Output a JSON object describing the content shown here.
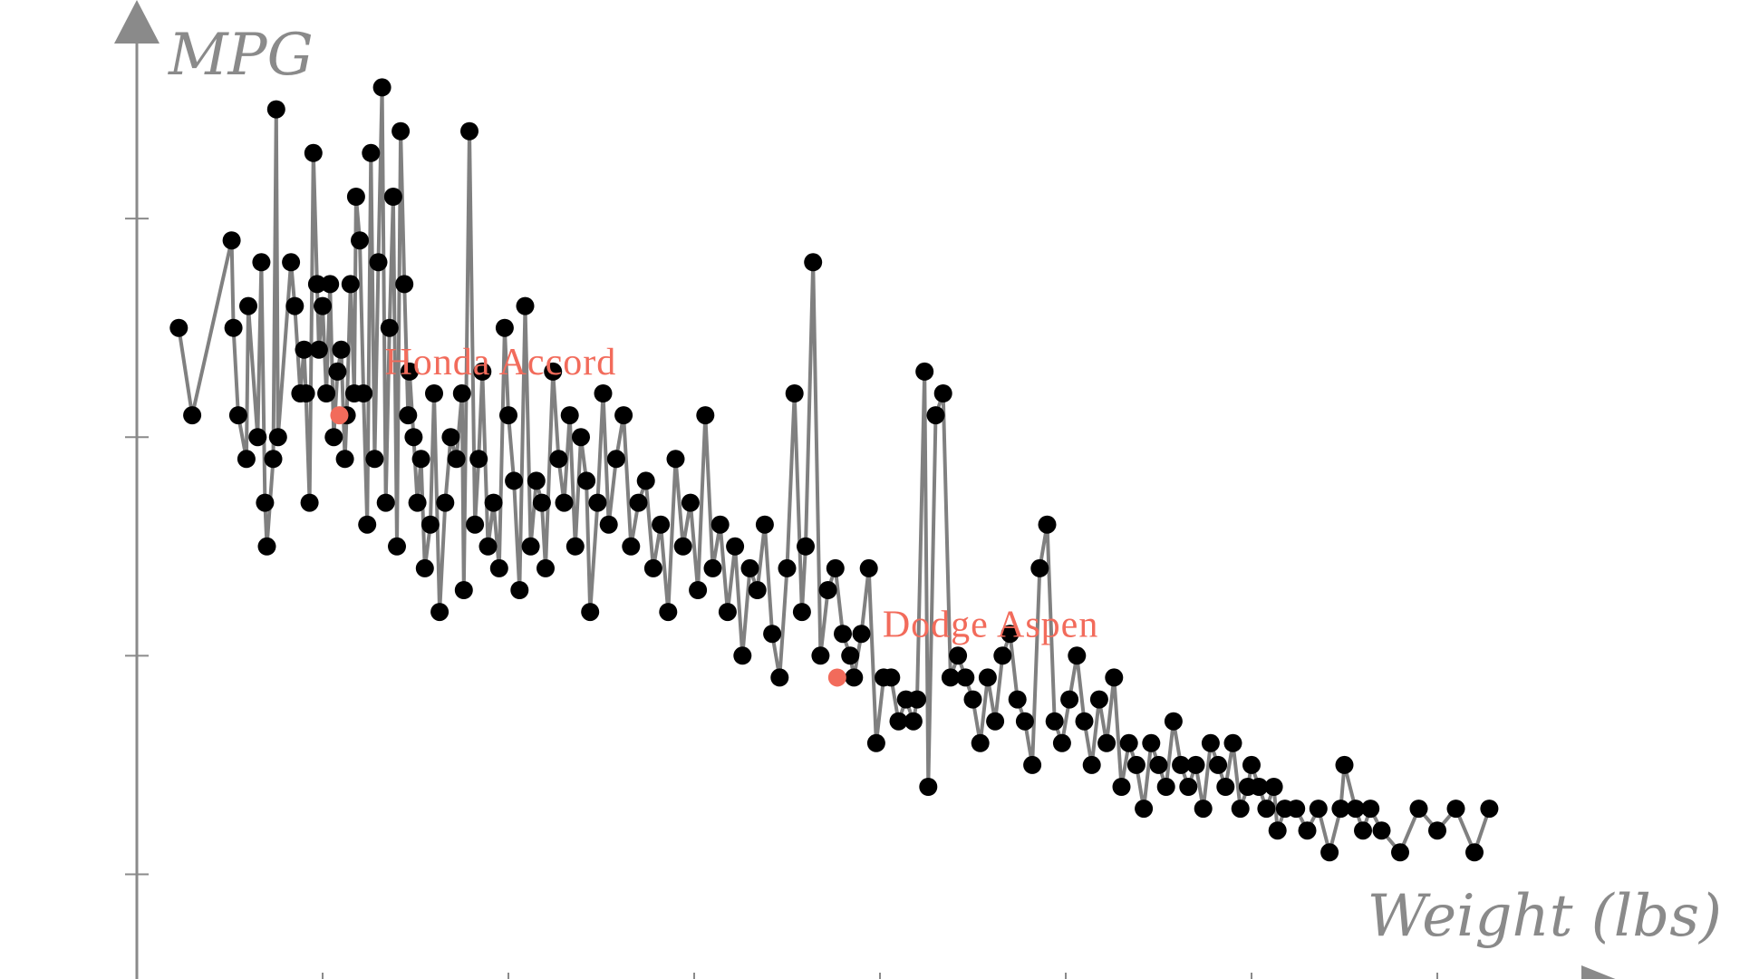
{
  "chart_data": {
    "type": "scatter",
    "title": "",
    "xlabel": "Weight (lbs)",
    "ylabel": "MPG",
    "xlim": [
      1500,
      5500
    ],
    "ylim": [
      5,
      50
    ],
    "x_ticks": [
      2000,
      2500,
      3000,
      3500,
      4000,
      4500,
      5000
    ],
    "y_ticks": [
      10,
      20,
      30,
      40
    ],
    "tick_labels_shown": false,
    "grid": false,
    "connecting_line": true,
    "point_color": "#000000",
    "line_color": "#808080",
    "highlight_color": "#f26b5b",
    "series": [
      {
        "points": [
          [
            1613,
            35
          ],
          [
            1649,
            31
          ],
          [
            1755,
            39
          ],
          [
            1760,
            35
          ],
          [
            1773,
            31
          ],
          [
            1795,
            29
          ],
          [
            1800,
            36
          ],
          [
            1825,
            30
          ],
          [
            1835,
            38
          ],
          [
            1845,
            27
          ],
          [
            1850,
            25
          ],
          [
            1867,
            29
          ],
          [
            1875,
            45
          ],
          [
            1880,
            30
          ],
          [
            1915,
            38
          ],
          [
            1925,
            36
          ],
          [
            1940,
            32
          ],
          [
            1950,
            34
          ],
          [
            1955,
            32
          ],
          [
            1965,
            27
          ],
          [
            1975,
            43
          ],
          [
            1985,
            37
          ],
          [
            1990,
            34
          ],
          [
            2000,
            36
          ],
          [
            2010,
            32
          ],
          [
            2020,
            37
          ],
          [
            2030,
            30
          ],
          [
            2040,
            33
          ],
          [
            2050,
            34
          ],
          [
            2060,
            29
          ],
          [
            2065,
            31
          ],
          [
            2075,
            37
          ],
          [
            2085,
            32
          ],
          [
            2090,
            41
          ],
          [
            2100,
            39
          ],
          [
            2110,
            32
          ],
          [
            2120,
            26
          ],
          [
            2130,
            43
          ],
          [
            2140,
            29
          ],
          [
            2150,
            38
          ],
          [
            2160,
            46
          ],
          [
            2170,
            27
          ],
          [
            2180,
            35
          ],
          [
            2190,
            41
          ],
          [
            2200,
            25
          ],
          [
            2210,
            44
          ],
          [
            2220,
            37
          ],
          [
            2230,
            31
          ],
          [
            2234,
            33
          ],
          [
            2245,
            30
          ],
          [
            2255,
            27
          ],
          [
            2265,
            29
          ],
          [
            2275,
            24
          ],
          [
            2290,
            26
          ],
          [
            2300,
            32
          ],
          [
            2315,
            22
          ],
          [
            2330,
            27
          ],
          [
            2345,
            30
          ],
          [
            2360,
            29
          ],
          [
            2375,
            32
          ],
          [
            2380,
            23
          ],
          [
            2395,
            44
          ],
          [
            2410,
            26
          ],
          [
            2420,
            29
          ],
          [
            2430,
            33
          ],
          [
            2445,
            25
          ],
          [
            2460,
            27
          ],
          [
            2475,
            24
          ],
          [
            2490,
            35
          ],
          [
            2500,
            31
          ],
          [
            2515,
            28
          ],
          [
            2530,
            23
          ],
          [
            2545,
            36
          ],
          [
            2560,
            25
          ],
          [
            2575,
            28
          ],
          [
            2590,
            27
          ],
          [
            2600,
            24
          ],
          [
            2620,
            33
          ],
          [
            2635,
            29
          ],
          [
            2650,
            27
          ],
          [
            2665,
            31
          ],
          [
            2680,
            25
          ],
          [
            2695,
            30
          ],
          [
            2710,
            28
          ],
          [
            2720,
            22
          ],
          [
            2740,
            27
          ],
          [
            2755,
            32
          ],
          [
            2770,
            26
          ],
          [
            2790,
            29
          ],
          [
            2810,
            31
          ],
          [
            2830,
            25
          ],
          [
            2850,
            27
          ],
          [
            2870,
            28
          ],
          [
            2890,
            24
          ],
          [
            2910,
            26
          ],
          [
            2930,
            22
          ],
          [
            2950,
            29
          ],
          [
            2970,
            25
          ],
          [
            2990,
            27
          ],
          [
            3010,
            23
          ],
          [
            3030,
            31
          ],
          [
            3050,
            24
          ],
          [
            3070,
            26
          ],
          [
            3090,
            22
          ],
          [
            3110,
            25
          ],
          [
            3130,
            20
          ],
          [
            3150,
            24
          ],
          [
            3170,
            23
          ],
          [
            3190,
            26
          ],
          [
            3210,
            21
          ],
          [
            3230,
            19
          ],
          [
            3250,
            24
          ],
          [
            3270,
            32
          ],
          [
            3290,
            22
          ],
          [
            3300,
            25
          ],
          [
            3320,
            38
          ],
          [
            3340,
            20
          ],
          [
            3360,
            23
          ],
          [
            3380,
            24
          ],
          [
            3400,
            21
          ],
          [
            3420,
            20
          ],
          [
            3430,
            19
          ],
          [
            3450,
            21
          ],
          [
            3470,
            24
          ],
          [
            3490,
            16
          ],
          [
            3510,
            19
          ],
          [
            3530,
            19
          ],
          [
            3550,
            17
          ],
          [
            3570,
            18
          ],
          [
            3590,
            17
          ],
          [
            3600,
            18
          ],
          [
            3620,
            33
          ],
          [
            3630,
            14
          ],
          [
            3650,
            31
          ],
          [
            3670,
            32
          ],
          [
            3690,
            19
          ],
          [
            3710,
            20
          ],
          [
            3730,
            19
          ],
          [
            3750,
            18
          ],
          [
            3770,
            16
          ],
          [
            3790,
            19
          ],
          [
            3810,
            17
          ],
          [
            3830,
            20
          ],
          [
            3850,
            21
          ],
          [
            3870,
            18
          ],
          [
            3890,
            17
          ],
          [
            3910,
            15
          ],
          [
            3930,
            24
          ],
          [
            3950,
            26
          ],
          [
            3970,
            17
          ],
          [
            3990,
            16
          ],
          [
            4010,
            18
          ],
          [
            4030,
            20
          ],
          [
            4050,
            17
          ],
          [
            4070,
            15
          ],
          [
            4090,
            18
          ],
          [
            4110,
            16
          ],
          [
            4130,
            19
          ],
          [
            4150,
            14
          ],
          [
            4170,
            16
          ],
          [
            4190,
            15
          ],
          [
            4210,
            13
          ],
          [
            4230,
            16
          ],
          [
            4250,
            15
          ],
          [
            4270,
            14
          ],
          [
            4290,
            17
          ],
          [
            4310,
            15
          ],
          [
            4330,
            14
          ],
          [
            4350,
            15
          ],
          [
            4370,
            13
          ],
          [
            4390,
            16
          ],
          [
            4410,
            15
          ],
          [
            4430,
            14
          ],
          [
            4450,
            16
          ],
          [
            4470,
            13
          ],
          [
            4490,
            14
          ],
          [
            4500,
            15
          ],
          [
            4520,
            14
          ],
          [
            4540,
            13
          ],
          [
            4560,
            14
          ],
          [
            4570,
            12
          ],
          [
            4590,
            13
          ],
          [
            4620,
            13
          ],
          [
            4650,
            12
          ],
          [
            4680,
            13
          ],
          [
            4710,
            11
          ],
          [
            4740,
            13
          ],
          [
            4750,
            15
          ],
          [
            4780,
            13
          ],
          [
            4800,
            12
          ],
          [
            4820,
            13
          ],
          [
            4850,
            12
          ],
          [
            4900,
            11
          ],
          [
            4950,
            13
          ],
          [
            5000,
            12
          ],
          [
            5050,
            13
          ],
          [
            5100,
            11
          ],
          [
            5140,
            13
          ]
        ]
      }
    ],
    "annotations": [
      {
        "label": "Honda Accord",
        "x": 2045,
        "y": 31
      },
      {
        "label": "Dodge Aspen",
        "x": 3385,
        "y": 19
      }
    ]
  }
}
